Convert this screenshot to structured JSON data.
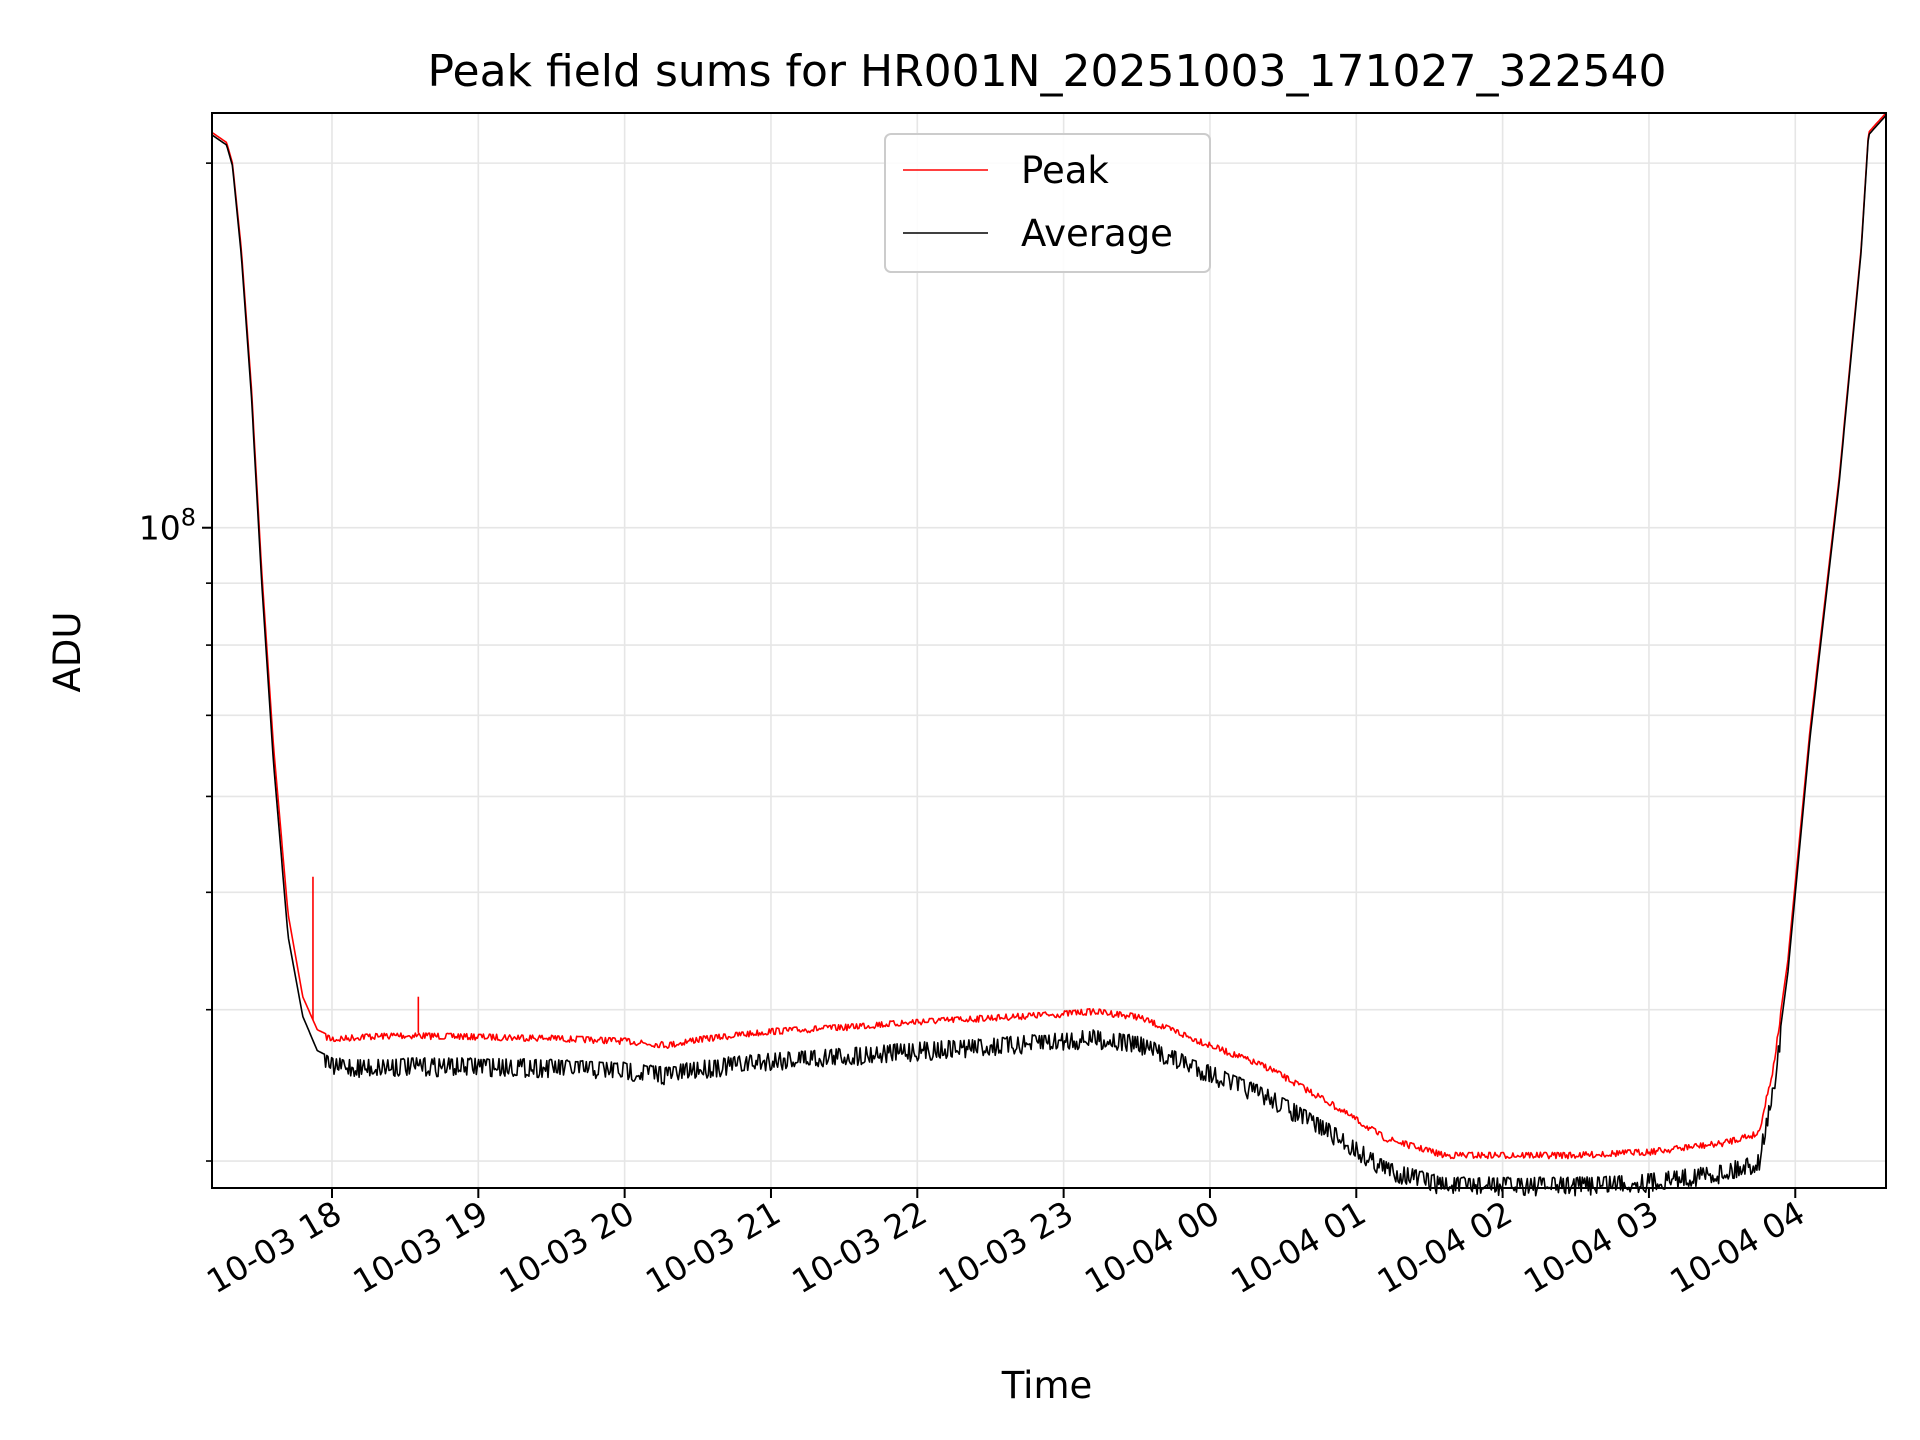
{
  "chart_data": {
    "type": "line",
    "title": "Peak field sums for HR001N_20251003_171027_322540",
    "xlabel": "Time",
    "ylabel": "ADU",
    "yscale": "log",
    "xlim_hours": [
      -0.82,
      10.62
    ],
    "ylim": [
      28500000,
      220000000
    ],
    "x_tick_labels": [
      "10-03 18",
      "10-03 19",
      "10-03 20",
      "10-03 21",
      "10-03 22",
      "10-03 23",
      "10-04 00",
      "10-04 01",
      "10-04 02",
      "10-04 03",
      "10-04 04"
    ],
    "x_tick_hours": [
      0,
      1,
      2,
      3,
      4,
      5,
      6,
      7,
      8,
      9,
      10
    ],
    "y_major_ticks": [
      {
        "value": 100000000,
        "base": "10",
        "exp": "8"
      }
    ],
    "y_minor_ticks": [
      30000000,
      40000000,
      50000000,
      60000000,
      70000000,
      80000000,
      90000000,
      200000000
    ],
    "grid": true,
    "legend": {
      "position": "top-center",
      "entries": [
        "Peak",
        "Average"
      ]
    },
    "series": [
      {
        "name": "Peak",
        "color": "#ff0000",
        "x": [
          -0.82,
          -0.72,
          -0.68,
          -0.62,
          -0.55,
          -0.48,
          -0.4,
          -0.3,
          -0.2,
          -0.1,
          0.0,
          0.2,
          0.5,
          1.0,
          1.5,
          2.0,
          2.3,
          2.5,
          3.0,
          3.5,
          4.0,
          4.5,
          5.0,
          5.2,
          5.5,
          6.0,
          6.4,
          6.8,
          7.2,
          7.6,
          8.0,
          8.5,
          9.0,
          9.5,
          9.75,
          9.85,
          9.95,
          10.1,
          10.3,
          10.45,
          10.5,
          10.62
        ],
        "values": [
          212000000,
          208000000,
          200000000,
          170000000,
          130000000,
          92000000,
          66000000,
          48000000,
          41000000,
          38500000,
          38000000,
          38200000,
          38300000,
          38200000,
          38100000,
          37900000,
          37600000,
          38000000,
          38600000,
          38900000,
          39300000,
          39600000,
          39900000,
          40100000,
          39700000,
          37600000,
          36000000,
          33800000,
          31500000,
          30500000,
          30500000,
          30500000,
          30700000,
          31200000,
          31800000,
          36000000,
          44000000,
          68000000,
          110000000,
          170000000,
          212000000,
          220000000
        ],
        "spikes": [
          {
            "x": -0.13,
            "value": 51500000
          },
          {
            "x": 0.59,
            "value": 41000000
          }
        ]
      },
      {
        "name": "Average",
        "color": "#000000",
        "x": [
          -0.82,
          -0.72,
          -0.68,
          -0.62,
          -0.55,
          -0.48,
          -0.4,
          -0.3,
          -0.2,
          -0.1,
          0.0,
          0.2,
          0.5,
          1.0,
          1.5,
          2.0,
          2.3,
          2.5,
          3.0,
          3.5,
          4.0,
          4.5,
          5.0,
          5.2,
          5.5,
          6.0,
          6.4,
          6.8,
          7.2,
          7.6,
          8.0,
          8.5,
          9.0,
          9.5,
          9.75,
          9.85,
          9.95,
          10.1,
          10.3,
          10.45,
          10.5,
          10.62
        ],
        "values": [
          211000000,
          207000000,
          199000000,
          168000000,
          128000000,
          90000000,
          64000000,
          46000000,
          39500000,
          37000000,
          36500000,
          36400000,
          36500000,
          36500000,
          36400000,
          36200000,
          35900000,
          36300000,
          36900000,
          37200000,
          37600000,
          37900000,
          38300000,
          38500000,
          38100000,
          36000000,
          34400000,
          32300000,
          30000000,
          29100000,
          29100000,
          29100000,
          29300000,
          29800000,
          30400000,
          34800000,
          43000000,
          67000000,
          109000000,
          169000000,
          211000000,
          219000000
        ]
      }
    ]
  }
}
